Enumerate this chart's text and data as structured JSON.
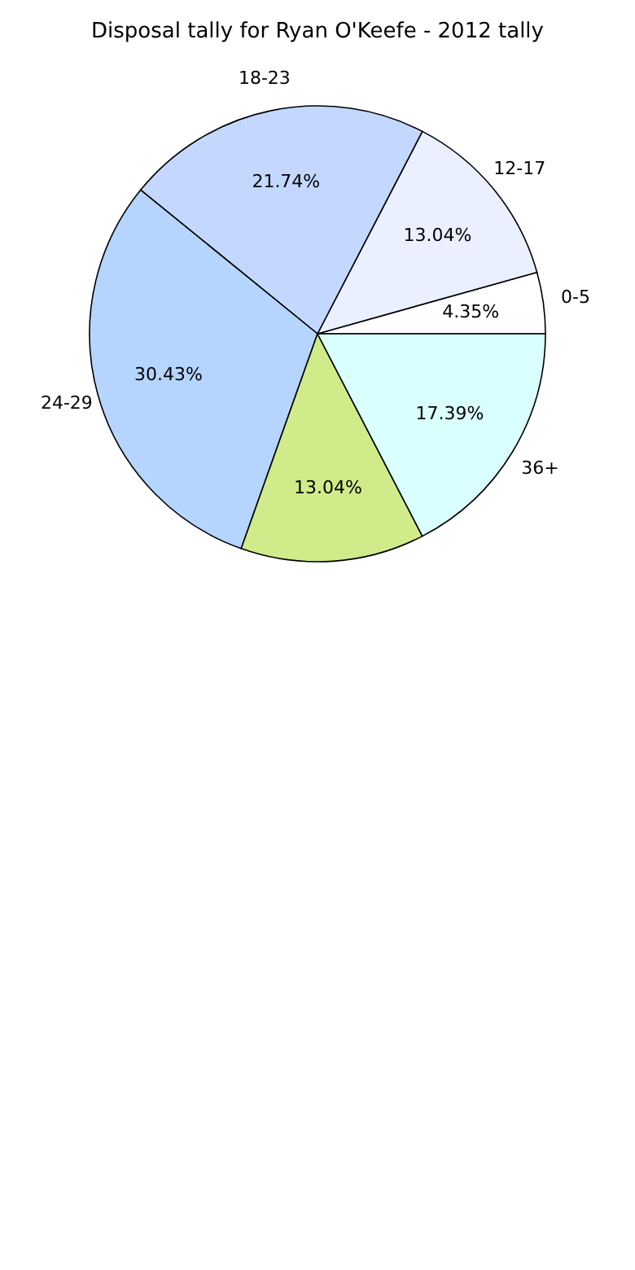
{
  "chart_data": {
    "type": "pie",
    "title": "Disposal tally for Ryan O'Keefe - 2012 tally",
    "categories": [
      "0-5",
      "12-17",
      "18-23",
      "24-29",
      null,
      "36+"
    ],
    "values": [
      4.35,
      13.04,
      21.74,
      30.43,
      13.04,
      17.39
    ],
    "value_labels": [
      "4.35%",
      "13.04%",
      "21.74%",
      "30.43%",
      "13.04%",
      "17.39%"
    ],
    "colors": [
      "#ffffff",
      "#eaf0ff",
      "#c4d8ff",
      "#b5d5ff",
      "#d0eb8a",
      "#d9ffff"
    ]
  }
}
